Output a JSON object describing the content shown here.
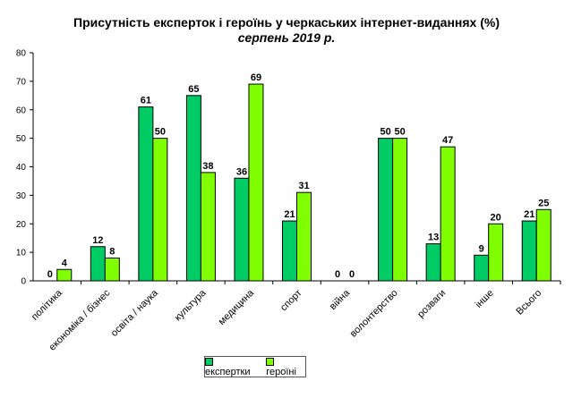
{
  "chart_data": {
    "type": "bar",
    "title": "Присутність експерток і героїнь у черкаських інтернет-виданнях (%)",
    "subtitle": "серпень 2019 р.",
    "categories": [
      "політика",
      "економіка / бізнес",
      "освіта / наука",
      "культура",
      "медицина",
      "спорт",
      "війна",
      "волонтерство",
      "розваги",
      "інше",
      "Всього"
    ],
    "series": [
      {
        "name": "експертки",
        "color": "#00cc66",
        "values": [
          0,
          12,
          61,
          65,
          36,
          21,
          0,
          50,
          13,
          9,
          21
        ]
      },
      {
        "name": "героїні",
        "color": "#80ff00",
        "values": [
          4,
          8,
          50,
          38,
          69,
          31,
          0,
          50,
          47,
          20,
          25
        ]
      }
    ],
    "ylim": [
      0,
      80
    ],
    "yticks": [
      0,
      10,
      20,
      30,
      40,
      50,
      60,
      70,
      80
    ],
    "grid": false,
    "legend": "bottom"
  }
}
